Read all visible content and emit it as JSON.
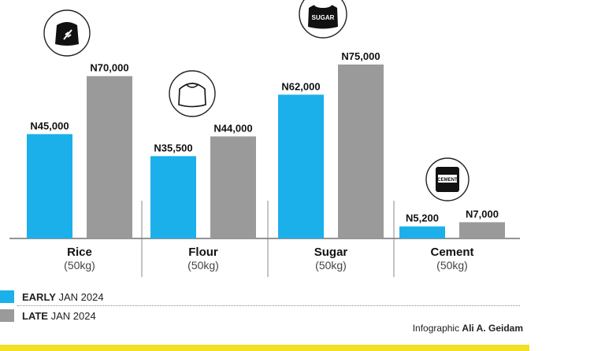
{
  "colors": {
    "early": "#1bb0ea",
    "late": "#9a9a9b",
    "bottom_bar": "#f2e024",
    "axis": "#555555",
    "icon_dark": "#111111"
  },
  "chart_data": {
    "type": "bar",
    "categories": [
      "Rice",
      "Flour",
      "Sugar",
      "Cement"
    ],
    "category_units": [
      "(50kg)",
      "(50kg)",
      "(50kg)",
      "(50kg)"
    ],
    "series": [
      {
        "name": "EARLY JAN 2024",
        "values": [
          45000,
          35500,
          62000,
          5200
        ],
        "labels": [
          "N45,000",
          "N35,500",
          "N62,000",
          "N5,200"
        ]
      },
      {
        "name": "LATE JAN 2024",
        "values": [
          70000,
          44000,
          75000,
          7000
        ],
        "labels": [
          "N70,000",
          "N44,000",
          "N75,000",
          "N7,000"
        ]
      }
    ],
    "icons": [
      "rice-bag-icon",
      "flour-bag-icon",
      "sugar-bag-icon",
      "cement-bag-icon"
    ],
    "icon_labels": [
      "",
      "",
      "SUGAR",
      "CEMENT"
    ],
    "ylim": [
      0,
      75000
    ],
    "grid": false,
    "legend_position": "bottom-left"
  },
  "legend": {
    "early_bold": "EARLY",
    "early_rest": " JAN 2024",
    "late_bold": "LATE",
    "late_rest": " JAN 2024"
  },
  "credit": {
    "prefix": "Infographic ",
    "author": "Ali A. Geidam"
  }
}
